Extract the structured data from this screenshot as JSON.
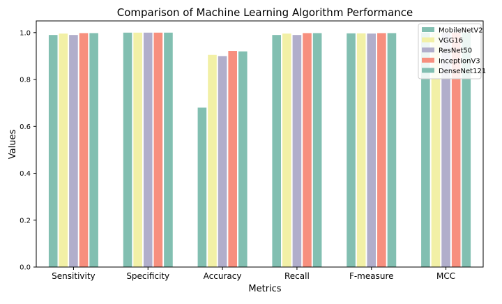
{
  "chart_data": {
    "type": "bar",
    "title": "Comparison of Machine Learning Algorithm Performance",
    "xlabel": "Metrics",
    "ylabel": "Values",
    "categories": [
      "Sensitivity",
      "Specificity",
      "Accuracy",
      "Recall",
      "F-measure",
      "MCC"
    ],
    "ylim": [
      0,
      1.05
    ],
    "yticks": [
      "0.0",
      "0.2",
      "0.4",
      "0.6",
      "0.8",
      "1.0"
    ],
    "grid": false,
    "legend_position": "top-right",
    "series": [
      {
        "name": "MobileNetV2",
        "color": "#82bfb1",
        "values": [
          0.99,
          1.0,
          0.68,
          0.99,
          0.997,
          1.0
        ]
      },
      {
        "name": "VGG16",
        "color": "#f2f0a6",
        "values": [
          0.996,
          1.0,
          0.905,
          0.996,
          0.997,
          1.0
        ]
      },
      {
        "name": "ResNet50",
        "color": "#b1aecb",
        "values": [
          0.99,
          1.0,
          0.9,
          0.99,
          0.996,
          1.0
        ]
      },
      {
        "name": "InceptionV3",
        "color": "#f78f7e",
        "values": [
          0.998,
          1.0,
          0.922,
          0.998,
          0.998,
          1.0
        ]
      },
      {
        "name": "DenseNet121",
        "color": "#82bfb1",
        "values": [
          0.998,
          1.0,
          0.92,
          0.998,
          0.998,
          1.0
        ]
      }
    ]
  }
}
